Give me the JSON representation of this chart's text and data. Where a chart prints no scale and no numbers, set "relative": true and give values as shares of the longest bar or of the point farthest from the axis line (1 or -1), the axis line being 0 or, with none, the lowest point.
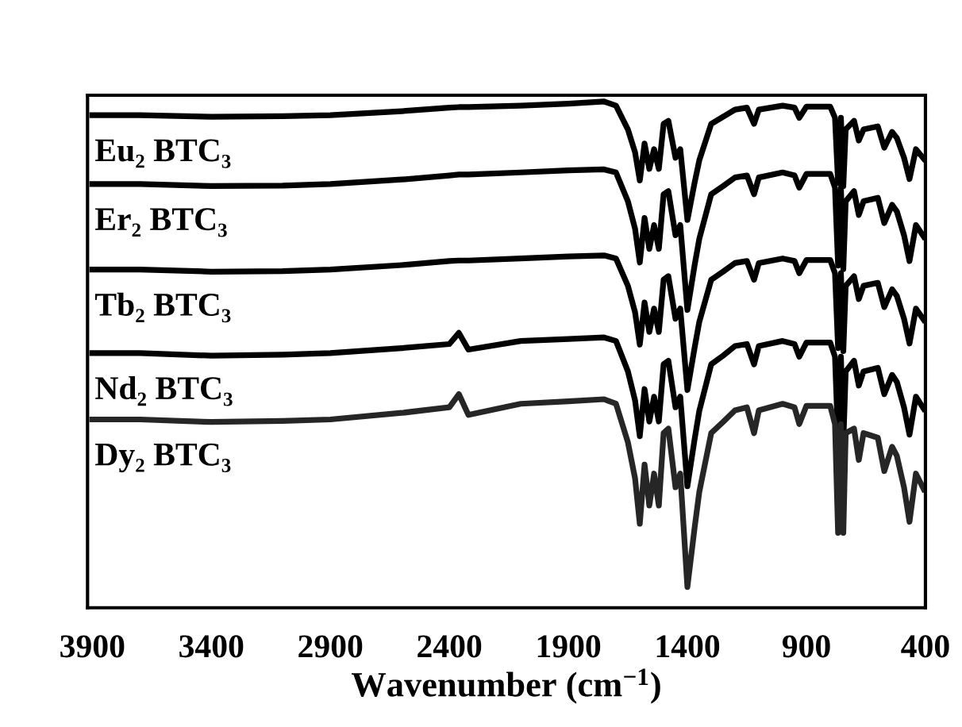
{
  "chart_data": {
    "type": "line",
    "relative": true,
    "xlabel": "Wavenumber (cm$^{−1}$)",
    "x": [
      3900,
      3700,
      3400,
      3100,
      2900,
      2600,
      2400,
      2360,
      2320,
      2100,
      1900,
      1750,
      1700,
      1650,
      1620,
      1600,
      1580,
      1560,
      1540,
      1520,
      1500,
      1480,
      1450,
      1430,
      1400,
      1370,
      1350,
      1300,
      1250,
      1200,
      1150,
      1120,
      1100,
      1000,
      950,
      930,
      900,
      800,
      780,
      767,
      755,
      745,
      735,
      700,
      680,
      660,
      600,
      573,
      540,
      520,
      490,
      467,
      440,
      407
    ],
    "xlim": [
      3920,
      400
    ],
    "xticks": [
      3900,
      3400,
      2900,
      2400,
      1900,
      1400,
      900,
      400
    ],
    "tick_labels": "x",
    "grid": false,
    "legend": false,
    "line_style": "solid",
    "marker": "none",
    "series": [
      {
        "name": "Eu₂ BTC₃",
        "color": "#000000",
        "values": [
          0.973,
          0.973,
          0.97,
          0.971,
          0.973,
          0.981,
          0.988,
          0.989,
          0.989,
          0.992,
          0.996,
          1.0,
          0.992,
          0.945,
          0.9,
          0.844,
          0.917,
          0.867,
          0.906,
          0.867,
          0.956,
          0.962,
          0.889,
          0.906,
          0.766,
          0.839,
          0.884,
          0.956,
          0.97,
          0.984,
          0.988,
          0.956,
          0.984,
          0.992,
          0.988,
          0.968,
          0.99,
          0.99,
          0.968,
          0.839,
          0.968,
          0.833,
          0.945,
          0.962,
          0.923,
          0.945,
          0.951,
          0.909,
          0.94,
          0.928,
          0.889,
          0.847,
          0.906,
          0.887
        ]
      },
      {
        "name": "Er₂ BTC₃",
        "color": "#000000",
        "values": [
          0.837,
          0.837,
          0.833,
          0.834,
          0.837,
          0.846,
          0.854,
          0.856,
          0.856,
          0.86,
          0.864,
          0.866,
          0.86,
          0.803,
          0.749,
          0.682,
          0.77,
          0.709,
          0.756,
          0.709,
          0.817,
          0.823,
          0.736,
          0.756,
          0.588,
          0.676,
          0.729,
          0.817,
          0.833,
          0.85,
          0.854,
          0.817,
          0.85,
          0.86,
          0.854,
          0.83,
          0.857,
          0.857,
          0.83,
          0.676,
          0.83,
          0.669,
          0.803,
          0.823,
          0.776,
          0.803,
          0.81,
          0.76,
          0.796,
          0.783,
          0.736,
          0.685,
          0.756,
          0.733
        ]
      },
      {
        "name": "Tb₂ BTC₃",
        "color": "#000000",
        "values": [
          0.668,
          0.668,
          0.664,
          0.665,
          0.668,
          0.677,
          0.685,
          0.686,
          0.686,
          0.69,
          0.694,
          0.696,
          0.69,
          0.636,
          0.584,
          0.52,
          0.603,
          0.545,
          0.591,
          0.545,
          0.648,
          0.655,
          0.571,
          0.591,
          0.43,
          0.513,
          0.565,
          0.648,
          0.664,
          0.681,
          0.685,
          0.648,
          0.681,
          0.69,
          0.685,
          0.661,
          0.687,
          0.687,
          0.661,
          0.513,
          0.661,
          0.507,
          0.636,
          0.655,
          0.61,
          0.636,
          0.642,
          0.594,
          0.629,
          0.616,
          0.571,
          0.522,
          0.591,
          0.569
        ]
      },
      {
        "name": "Nd₂ BTC₃",
        "color": "#000000",
        "values": [
          0.503,
          0.503,
          0.498,
          0.5,
          0.503,
          0.513,
          0.521,
          0.543,
          0.51,
          0.527,
          0.531,
          0.534,
          0.527,
          0.467,
          0.41,
          0.339,
          0.432,
          0.368,
          0.417,
          0.368,
          0.481,
          0.488,
          0.396,
          0.417,
          0.24,
          0.332,
          0.389,
          0.481,
          0.498,
          0.517,
          0.521,
          0.481,
          0.517,
          0.527,
          0.521,
          0.496,
          0.524,
          0.524,
          0.496,
          0.332,
          0.496,
          0.325,
          0.467,
          0.488,
          0.439,
          0.467,
          0.474,
          0.422,
          0.46,
          0.446,
          0.396,
          0.342,
          0.417,
          0.393
        ]
      },
      {
        "name": "Dy₂ BTC₃",
        "color": "#262626",
        "values": [
          0.372,
          0.372,
          0.367,
          0.369,
          0.372,
          0.385,
          0.396,
          0.422,
          0.381,
          0.403,
          0.408,
          0.412,
          0.403,
          0.327,
          0.256,
          0.166,
          0.283,
          0.202,
          0.265,
          0.202,
          0.345,
          0.354,
          0.238,
          0.265,
          0.041,
          0.157,
          0.229,
          0.345,
          0.367,
          0.39,
          0.396,
          0.345,
          0.39,
          0.403,
          0.396,
          0.363,
          0.399,
          0.399,
          0.363,
          0.148,
          0.363,
          0.148,
          0.345,
          0.354,
          0.292,
          0.345,
          0.336,
          0.27,
          0.318,
          0.3,
          0.238,
          0.17,
          0.265,
          0.234
        ]
      }
    ]
  }
}
